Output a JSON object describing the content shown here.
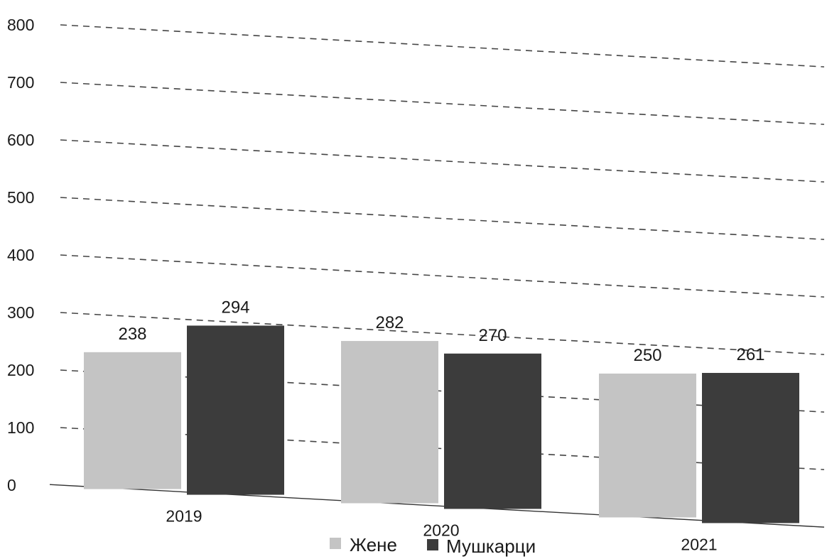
{
  "chart_data": {
    "type": "bar",
    "categories": [
      "2019",
      "2020",
      "2021"
    ],
    "series": [
      {
        "name": "Жене",
        "values": [
          238,
          282,
          250
        ],
        "color": "#c4c4c4"
      },
      {
        "name": "Мушкарци",
        "values": [
          294,
          270,
          261
        ],
        "color": "#3c3c3c"
      }
    ],
    "data_labels": [
      [
        "238",
        "282",
        "250"
      ],
      [
        "294",
        "270",
        "261"
      ]
    ],
    "y_ticks": [
      0,
      100,
      200,
      300,
      400,
      500,
      600,
      700,
      800
    ],
    "ylim": [
      0,
      800
    ],
    "grid": true,
    "legend_position": "bottom",
    "title": "",
    "xlabel": "",
    "ylabel": ""
  }
}
